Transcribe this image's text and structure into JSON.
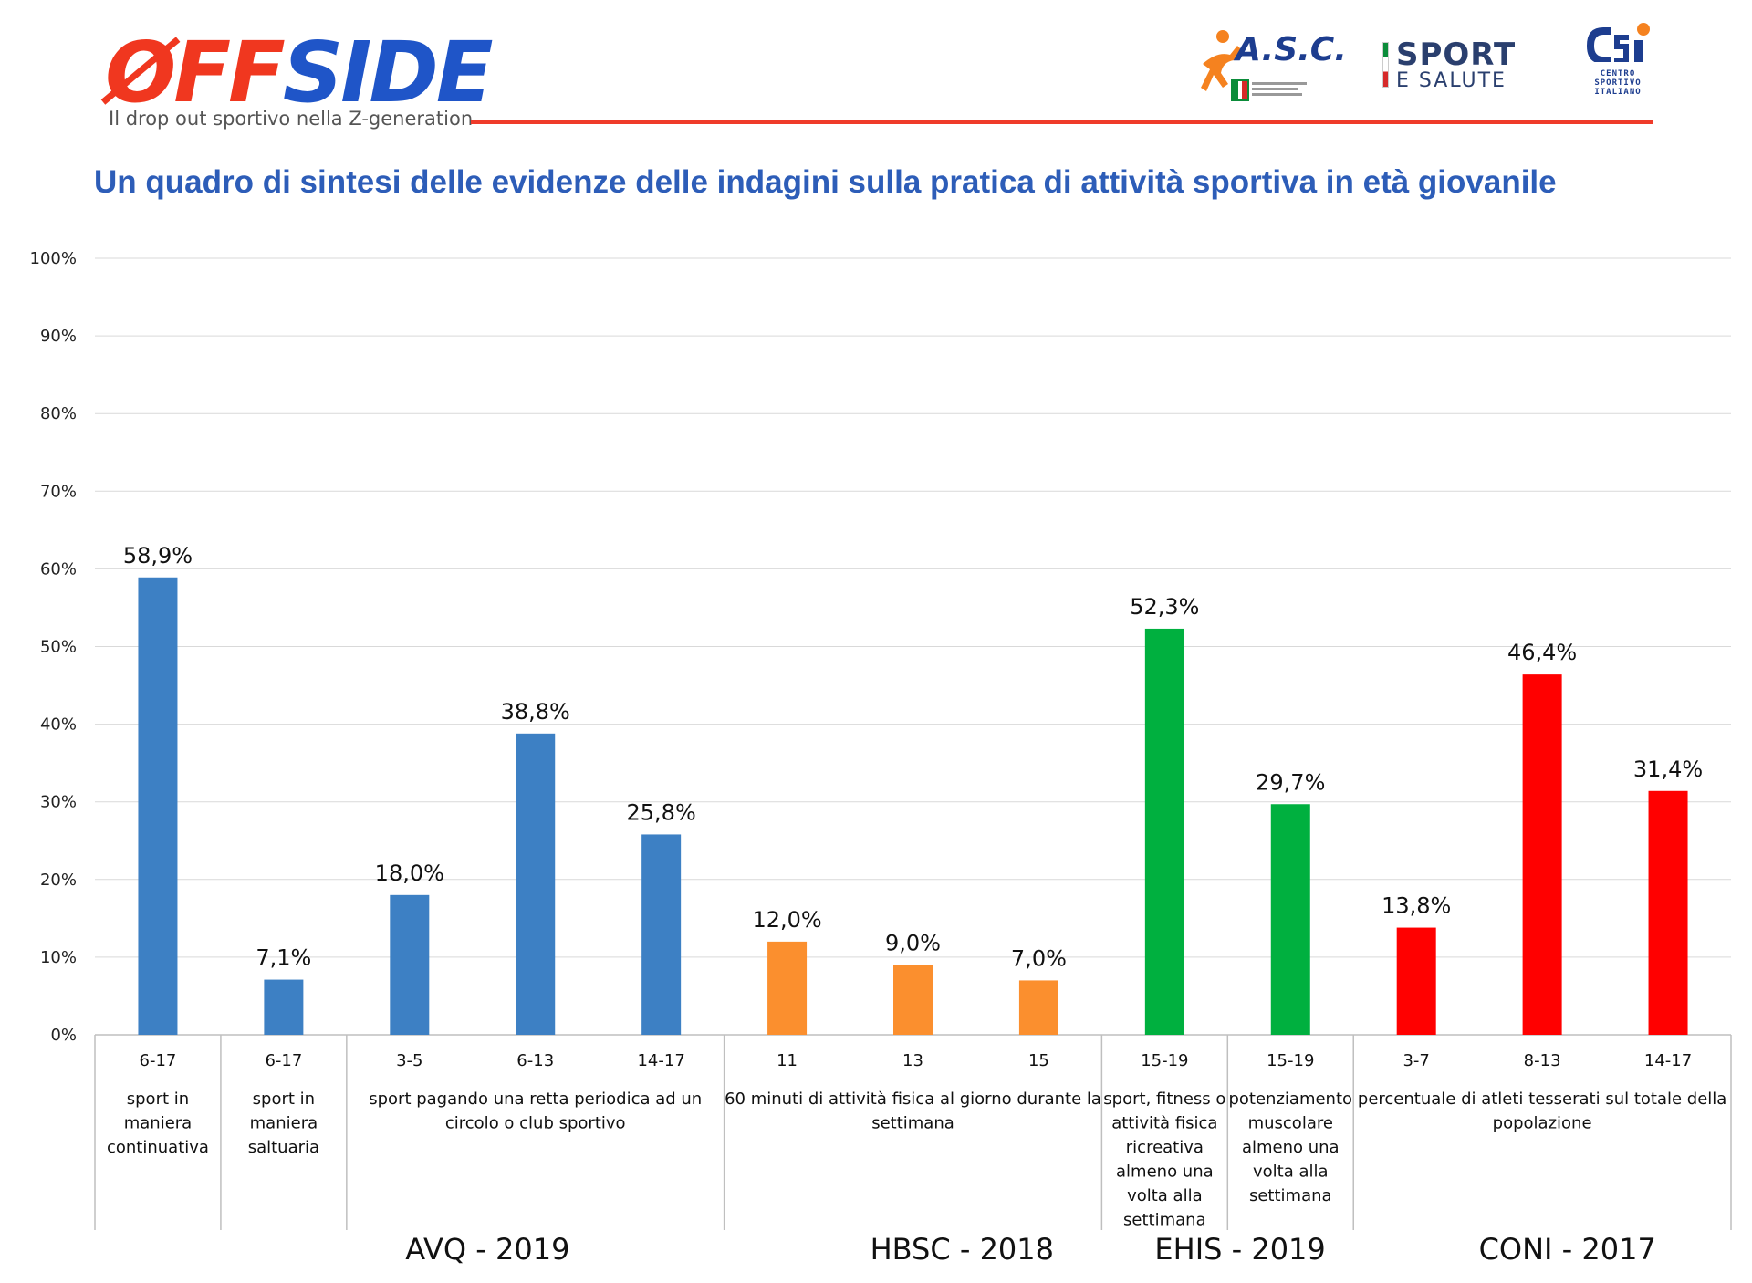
{
  "header": {
    "brand_left": "ØFF",
    "brand_right": "SIDE",
    "tagline": "Il drop out sportivo nella Z-generation",
    "partner_asc": "A.S.C.",
    "partner_sport_line1": "SPORT",
    "partner_sport_line2": "E SALUTE",
    "partner_csi_lines": [
      "CENTRO",
      "SPORTIVO",
      "ITALIANO"
    ],
    "accent_color": "#ef3b2a"
  },
  "page_title": "Un quadro di sintesi delle evidenze delle indagini sulla pratica di attività sportiva in età giovanile",
  "chart_data": {
    "type": "bar",
    "ylim": [
      0,
      100
    ],
    "y_ticks": [
      "0%",
      "10%",
      "20%",
      "30%",
      "40%",
      "50%",
      "60%",
      "70%",
      "80%",
      "90%",
      "100%"
    ],
    "y_tick_values": [
      0,
      10,
      20,
      30,
      40,
      50,
      60,
      70,
      80,
      90,
      100
    ],
    "grid": true,
    "categories": [
      "6-17",
      "6-17",
      "3-5",
      "6-13",
      "14-17",
      "11",
      "13",
      "15",
      "15-19",
      "15-19",
      "3-7",
      "8-13",
      "14-17"
    ],
    "values": [
      58.9,
      7.1,
      18.0,
      38.8,
      25.8,
      12.0,
      9.0,
      7.0,
      52.3,
      29.7,
      13.8,
      46.4,
      31.4
    ],
    "data_labels": [
      "58,9%",
      "7,1%",
      "18,0%",
      "38,8%",
      "25,8%",
      "12,0%",
      "9,0%",
      "7,0%",
      "52,3%",
      "29,7%",
      "13,8%",
      "46,4%",
      "31,4%"
    ],
    "bar_colors": [
      "#3d80c4",
      "#3d80c4",
      "#3d80c4",
      "#3d80c4",
      "#3d80c4",
      "#fb8f2e",
      "#fb8f2e",
      "#fb8f2e",
      "#00b03f",
      "#00b03f",
      "#ff0000",
      "#ff0000",
      "#ff0000"
    ],
    "descriptions": [
      {
        "start": 0,
        "end": 0,
        "lines": [
          "sport in",
          "maniera",
          "continuativa"
        ]
      },
      {
        "start": 1,
        "end": 1,
        "lines": [
          "sport in",
          "maniera",
          "saltuaria"
        ]
      },
      {
        "start": 2,
        "end": 4,
        "lines": [
          "sport pagando una retta periodica ad un",
          "circolo o club sportivo"
        ]
      },
      {
        "start": 5,
        "end": 7,
        "lines": [
          "60 minuti di attività fisica al giorno durante la",
          "settimana"
        ]
      },
      {
        "start": 8,
        "end": 8,
        "lines": [
          "sport, fitness o",
          "attività fisica",
          "ricreativa",
          "almeno una",
          "volta alla",
          "settimana"
        ]
      },
      {
        "start": 9,
        "end": 9,
        "lines": [
          "potenziamento",
          "muscolare",
          "almeno una",
          "volta alla",
          "settimana"
        ]
      },
      {
        "start": 10,
        "end": 12,
        "lines": [
          "percentuale di atleti tesserati sul totale della",
          "popolazione"
        ]
      }
    ],
    "groups": [
      {
        "label": "AVQ - 2019",
        "start": 0,
        "end": 4
      },
      {
        "label": "HBSC - 2018",
        "start": 5,
        "end": 7
      },
      {
        "label": "EHIS - 2019",
        "start": 8,
        "end": 9
      },
      {
        "label": "CONI - 2017",
        "start": 10,
        "end": 12
      }
    ]
  }
}
